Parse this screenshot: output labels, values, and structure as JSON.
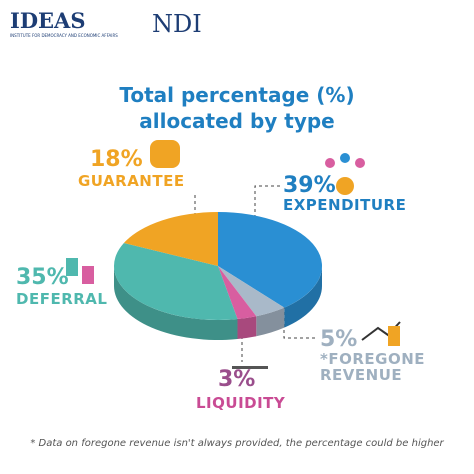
{
  "header": {
    "logo_left": "IDEAS",
    "logo_left_subtitle": "INSTITUTE FOR DEMOCRACY AND ECONOMIC AFFAIRS",
    "logo_right": "NDI"
  },
  "chart_data": {
    "type": "pie",
    "title": "Total percentage (%) allocated by type",
    "categories": [
      "EXPENDITURE",
      "*FOREGONE REVENUE",
      "LIQUIDITY",
      "DEFERRAL",
      "GUARANTEE"
    ],
    "values": [
      39,
      5,
      3,
      35,
      18
    ],
    "value_labels": [
      "39%",
      "5%",
      "3%",
      "35%",
      "18%"
    ],
    "colors": [
      "#2a8fd3",
      "#a9b9c9",
      "#d85ea0",
      "#4fb8ae",
      "#f0a424"
    ]
  },
  "footnote": "* Data on foregone revenue isn't always provided, the percentage could be higher"
}
